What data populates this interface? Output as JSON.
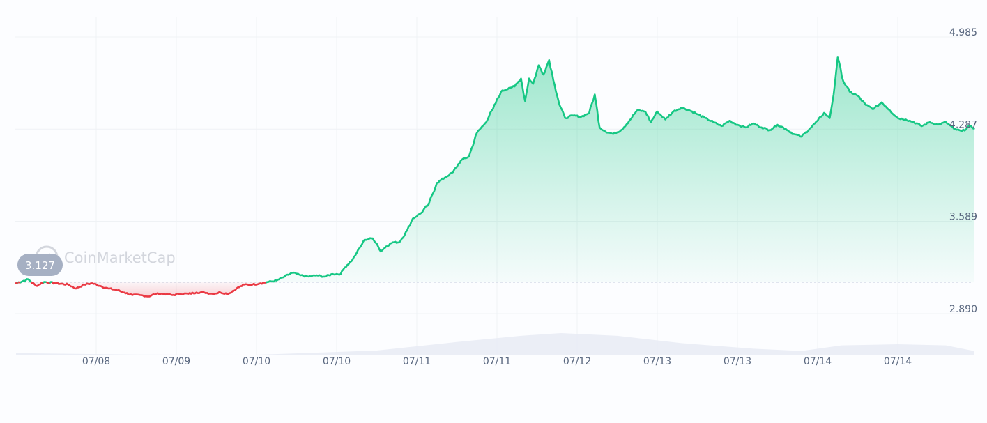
{
  "watermark": {
    "text": "CoinMarketCap"
  },
  "colors": {
    "up": "#16c784",
    "down": "#ea3943",
    "grid": "#eff2f5",
    "volume": "#e8ebf5",
    "badge": "#a6b0c3",
    "baseline": "#cfd6e4"
  },
  "chart_data": {
    "type": "area",
    "title": "",
    "xlabel": "",
    "ylabel": "",
    "ylim": [
      2.57,
      5.16
    ],
    "y_ticks": [
      "4.985",
      "4.287",
      "3.589",
      "2.890"
    ],
    "y_tick_values": [
      4.985,
      4.287,
      3.589,
      2.89
    ],
    "x_ticks": [
      "07/08",
      "07/09",
      "07/10",
      "07/10",
      "07/11",
      "07/11",
      "07/12",
      "07/13",
      "07/13",
      "07/14",
      "07/14"
    ],
    "x_tick_positions": [
      1,
      2,
      3,
      4,
      5,
      6,
      7,
      8,
      9,
      10,
      11
    ],
    "x_range": [
      0,
      11.95
    ],
    "baseline": {
      "value": 3.127,
      "label": "3.127"
    },
    "grid": true,
    "series": [
      {
        "values": [
          [
            0.0,
            3.12
          ],
          [
            0.15,
            3.15
          ],
          [
            0.25,
            3.1
          ],
          [
            0.35,
            3.13
          ],
          [
            0.5,
            3.12
          ],
          [
            0.65,
            3.11
          ],
          [
            0.75,
            3.08
          ],
          [
            0.85,
            3.11
          ],
          [
            0.95,
            3.12
          ],
          [
            1.05,
            3.1
          ],
          [
            1.15,
            3.08
          ],
          [
            1.25,
            3.07
          ],
          [
            1.35,
            3.05
          ],
          [
            1.45,
            3.03
          ],
          [
            1.55,
            3.03
          ],
          [
            1.65,
            3.02
          ],
          [
            1.75,
            3.04
          ],
          [
            1.85,
            3.04
          ],
          [
            1.95,
            3.03
          ],
          [
            2.05,
            3.04
          ],
          [
            2.15,
            3.04
          ],
          [
            2.25,
            3.05
          ],
          [
            2.35,
            3.05
          ],
          [
            2.45,
            3.04
          ],
          [
            2.55,
            3.05
          ],
          [
            2.65,
            3.04
          ],
          [
            2.75,
            3.08
          ],
          [
            2.85,
            3.11
          ],
          [
            2.95,
            3.11
          ],
          [
            3.05,
            3.12
          ],
          [
            3.15,
            3.13
          ],
          [
            3.25,
            3.14
          ],
          [
            3.35,
            3.17
          ],
          [
            3.45,
            3.2
          ],
          [
            3.55,
            3.18
          ],
          [
            3.65,
            3.17
          ],
          [
            3.75,
            3.18
          ],
          [
            3.85,
            3.17
          ],
          [
            3.95,
            3.19
          ],
          [
            4.05,
            3.19
          ],
          [
            4.1,
            3.24
          ],
          [
            4.2,
            3.3
          ],
          [
            4.25,
            3.35
          ],
          [
            4.3,
            3.4
          ],
          [
            4.35,
            3.45
          ],
          [
            4.45,
            3.46
          ],
          [
            4.5,
            3.42
          ],
          [
            4.55,
            3.36
          ],
          [
            4.62,
            3.4
          ],
          [
            4.7,
            3.43
          ],
          [
            4.78,
            3.43
          ],
          [
            4.88,
            3.52
          ],
          [
            4.95,
            3.61
          ],
          [
            5.05,
            3.65
          ],
          [
            5.15,
            3.72
          ],
          [
            5.25,
            3.88
          ],
          [
            5.35,
            3.92
          ],
          [
            5.45,
            3.96
          ],
          [
            5.55,
            4.05
          ],
          [
            5.65,
            4.08
          ],
          [
            5.75,
            4.26
          ],
          [
            5.85,
            4.33
          ],
          [
            5.95,
            4.44
          ],
          [
            6.05,
            4.57
          ],
          [
            6.15,
            4.6
          ],
          [
            6.22,
            4.61
          ],
          [
            6.3,
            4.67
          ],
          [
            6.35,
            4.5
          ],
          [
            6.4,
            4.67
          ],
          [
            6.45,
            4.63
          ],
          [
            6.52,
            4.77
          ],
          [
            6.58,
            4.7
          ],
          [
            6.65,
            4.81
          ],
          [
            6.72,
            4.62
          ],
          [
            6.78,
            4.47
          ],
          [
            6.85,
            4.37
          ],
          [
            6.95,
            4.39
          ],
          [
            7.05,
            4.38
          ],
          [
            7.15,
            4.41
          ],
          [
            7.22,
            4.55
          ],
          [
            7.28,
            4.3
          ],
          [
            7.35,
            4.27
          ],
          [
            7.45,
            4.25
          ],
          [
            7.55,
            4.28
          ],
          [
            7.65,
            4.35
          ],
          [
            7.75,
            4.43
          ],
          [
            7.85,
            4.42
          ],
          [
            7.92,
            4.34
          ],
          [
            8.0,
            4.42
          ],
          [
            8.1,
            4.36
          ],
          [
            8.2,
            4.42
          ],
          [
            8.3,
            4.45
          ],
          [
            8.4,
            4.43
          ],
          [
            8.5,
            4.4
          ],
          [
            8.6,
            4.37
          ],
          [
            8.7,
            4.34
          ],
          [
            8.8,
            4.31
          ],
          [
            8.9,
            4.35
          ],
          [
            9.0,
            4.32
          ],
          [
            9.1,
            4.3
          ],
          [
            9.2,
            4.33
          ],
          [
            9.3,
            4.3
          ],
          [
            9.4,
            4.28
          ],
          [
            9.5,
            4.32
          ],
          [
            9.6,
            4.29
          ],
          [
            9.7,
            4.25
          ],
          [
            9.8,
            4.23
          ],
          [
            9.9,
            4.29
          ],
          [
            10.0,
            4.35
          ],
          [
            10.08,
            4.41
          ],
          [
            10.15,
            4.37
          ],
          [
            10.2,
            4.55
          ],
          [
            10.25,
            4.83
          ],
          [
            10.32,
            4.65
          ],
          [
            10.4,
            4.57
          ],
          [
            10.5,
            4.54
          ],
          [
            10.6,
            4.47
          ],
          [
            10.7,
            4.44
          ],
          [
            10.8,
            4.49
          ],
          [
            10.9,
            4.43
          ],
          [
            11.0,
            4.37
          ],
          [
            11.1,
            4.36
          ],
          [
            11.2,
            4.34
          ],
          [
            11.3,
            4.31
          ],
          [
            11.4,
            4.34
          ],
          [
            11.5,
            4.32
          ],
          [
            11.6,
            4.34
          ],
          [
            11.7,
            4.29
          ],
          [
            11.8,
            4.27
          ],
          [
            11.9,
            4.31
          ],
          [
            11.95,
            4.29
          ]
        ]
      }
    ],
    "volume": [
      [
        0.0,
        0.1
      ],
      [
        1.5,
        0.04
      ],
      [
        3.0,
        0.03
      ],
      [
        4.5,
        0.22
      ],
      [
        5.5,
        0.6
      ],
      [
        6.3,
        0.88
      ],
      [
        6.8,
        1.0
      ],
      [
        7.5,
        0.88
      ],
      [
        8.3,
        0.55
      ],
      [
        9.2,
        0.3
      ],
      [
        9.8,
        0.2
      ],
      [
        10.3,
        0.45
      ],
      [
        11.0,
        0.5
      ],
      [
        11.6,
        0.45
      ],
      [
        11.95,
        0.2
      ]
    ]
  }
}
